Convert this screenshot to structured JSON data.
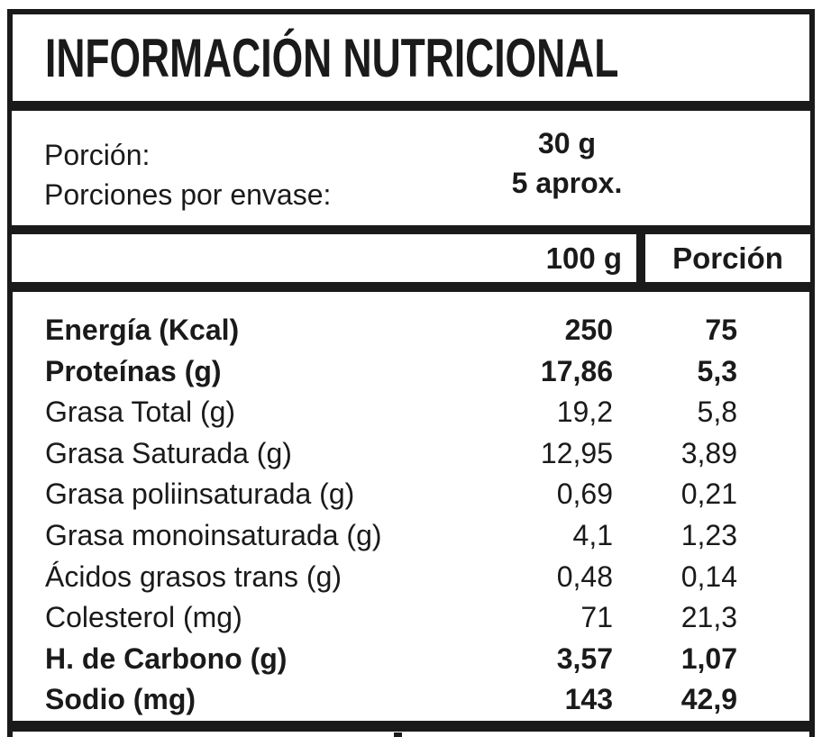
{
  "label": {
    "title": "INFORMACIÓN NUTRICIONAL",
    "serving": {
      "rows": [
        {
          "label": "Porción:",
          "value": "30 g"
        },
        {
          "label": "Porciones por envase:",
          "value": "5 aprox."
        }
      ]
    },
    "columns": {
      "per100": "100 g",
      "portion": "Porción"
    },
    "rows": [
      {
        "name": "Energía (Kcal)",
        "per100": "250",
        "portion": "75",
        "bold": true
      },
      {
        "name": "Proteínas (g)",
        "per100": "17,86",
        "portion": "5,3",
        "bold": true
      },
      {
        "name": "Grasa Total (g)",
        "per100": "19,2",
        "portion": "5,8",
        "bold": false
      },
      {
        "name": "Grasa Saturada (g)",
        "per100": "12,95",
        "portion": "3,89",
        "bold": false
      },
      {
        "name": "Grasa poliinsaturada (g)",
        "per100": "0,69",
        "portion": "0,21",
        "bold": false
      },
      {
        "name": "Grasa monoinsaturada (g)",
        "per100": "4,1",
        "portion": "1,23",
        "bold": false
      },
      {
        "name": "Ácidos grasos trans (g)",
        "per100": "0,48",
        "portion": "0,14",
        "bold": false
      },
      {
        "name": "Colesterol (mg)",
        "per100": "71",
        "portion": "21,3",
        "bold": false
      },
      {
        "name": "H. de Carbono (g)",
        "per100": "3,57",
        "portion": "1,07",
        "bold": true
      },
      {
        "name": "Sodio (mg)",
        "per100": "143",
        "portion": "42,9",
        "bold": true
      }
    ],
    "colors": {
      "ink": "#1a1a1a",
      "background": "#ffffff"
    }
  }
}
